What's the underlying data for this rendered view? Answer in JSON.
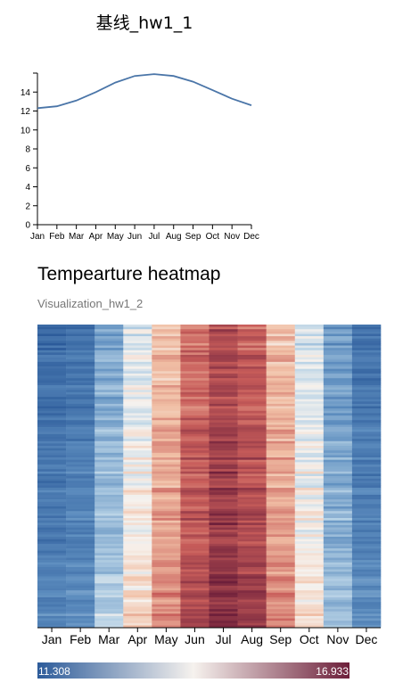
{
  "chart_data": [
    {
      "type": "line",
      "title": "基线_hw1_1",
      "x": [
        "Jan",
        "Feb",
        "Mar",
        "Apr",
        "May",
        "Jun",
        "Jul",
        "Aug",
        "Sep",
        "Oct",
        "Nov",
        "Dec"
      ],
      "series": [
        {
          "values": [
            12.3,
            12.5,
            13.1,
            14.0,
            15.0,
            15.7,
            15.9,
            15.7,
            15.1,
            14.2,
            13.3,
            12.6
          ]
        }
      ],
      "yticks": [
        "0",
        "2",
        "4",
        "6",
        "8",
        "10",
        "12",
        "14"
      ],
      "ylim": [
        0,
        16
      ],
      "color": "#4a75a8",
      "grid": false
    },
    {
      "type": "heatmap",
      "title": "Tempearture heatmap",
      "subtitle": "Visualization_hw1_2",
      "x": [
        "Jan",
        "Feb",
        "Mar",
        "Apr",
        "May",
        "Jun",
        "Jul",
        "Aug",
        "Sep",
        "Oct",
        "Nov",
        "Dec"
      ],
      "column_means": [
        12.0,
        12.2,
        13.2,
        14.2,
        15.1,
        15.9,
        16.4,
        16.1,
        15.1,
        14.1,
        13.0,
        12.2
      ],
      "color_scale": {
        "min": "11.308",
        "max": "16.933",
        "low": "#2c5b9a",
        "mid": "#f6f2ee",
        "high": "#6d1f3a"
      },
      "color_domain": [
        11.308,
        16.933
      ]
    }
  ]
}
